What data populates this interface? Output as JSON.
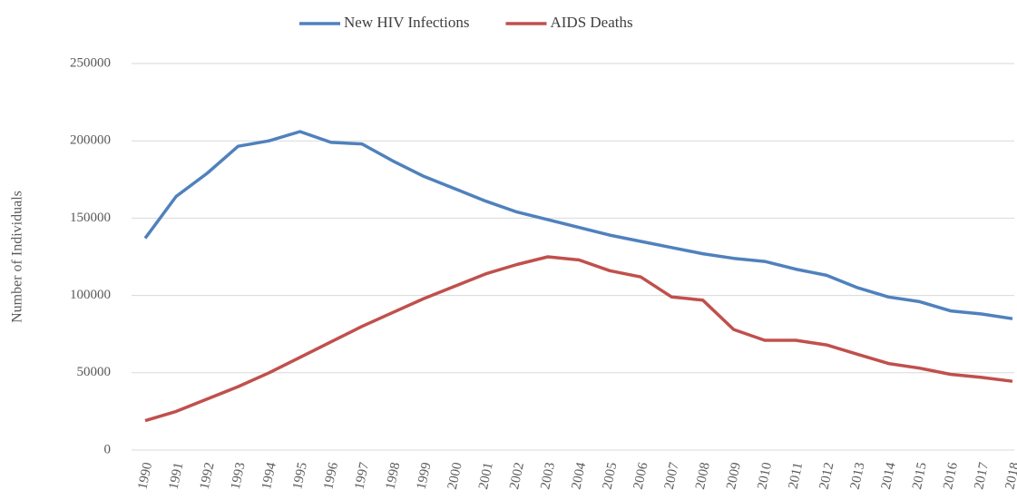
{
  "chart_data": {
    "type": "line",
    "y_label": "Number of Individuals",
    "categories": [
      "1990",
      "1991",
      "1992",
      "1993",
      "1994",
      "1995",
      "1996",
      "1997",
      "1998",
      "1999",
      "2000",
      "2001",
      "2002",
      "2003",
      "2004",
      "2005",
      "2006",
      "2007",
      "2008",
      "2009",
      "2010",
      "2011",
      "2012",
      "2013",
      "2014",
      "2015",
      "2016",
      "2017",
      "2018"
    ],
    "series": [
      {
        "name": "New HIV Infections",
        "color": "#4f81bd",
        "values": [
          137000,
          164000,
          179000,
          196500,
          200000,
          206000,
          199000,
          198000,
          187000,
          177000,
          169000,
          161000,
          154000,
          149000,
          144000,
          139000,
          135000,
          131000,
          127000,
          124000,
          122000,
          117000,
          113000,
          105000,
          99000,
          96000,
          90000,
          88000,
          85000
        ]
      },
      {
        "name": "AIDS Deaths",
        "color": "#c0504d",
        "values": [
          19000,
          25000,
          33000,
          41000,
          50000,
          60000,
          70000,
          80000,
          89000,
          98000,
          106000,
          114000,
          120000,
          125000,
          123000,
          116000,
          112000,
          99000,
          97000,
          78000,
          71000,
          71000,
          68000,
          62000,
          56000,
          53000,
          49000,
          47000,
          44500
        ]
      }
    ],
    "ylim": [
      0,
      250000
    ],
    "yticks": [
      0,
      50000,
      100000,
      150000,
      200000,
      250000
    ],
    "grid": true,
    "legend": "top"
  }
}
